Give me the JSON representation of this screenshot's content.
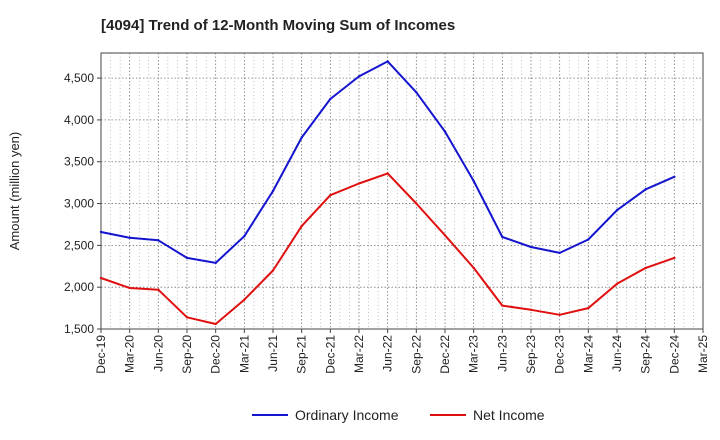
{
  "chart_data": {
    "type": "line",
    "title": "[4094]  Trend of 12-Month Moving Sum of Incomes",
    "xlabel": "",
    "ylabel": "Amount (million yen)",
    "ylim": [
      1500,
      4800
    ],
    "yticks": [
      1500,
      2000,
      2500,
      3000,
      3500,
      4000,
      4500
    ],
    "ytick_labels": [
      "1,500",
      "2,000",
      "2,500",
      "3,000",
      "3,500",
      "4,000",
      "4,500"
    ],
    "categories": [
      "Dec-19",
      "Mar-20",
      "Jun-20",
      "Sep-20",
      "Dec-20",
      "Mar-21",
      "Jun-21",
      "Sep-21",
      "Dec-21",
      "Mar-22",
      "Jun-22",
      "Sep-22",
      "Dec-22",
      "Mar-23",
      "Jun-23",
      "Sep-23",
      "Dec-23",
      "Mar-24",
      "Jun-24",
      "Sep-24",
      "Dec-24",
      "Mar-25"
    ],
    "grid": true,
    "legend_position": "bottom",
    "series": [
      {
        "name": "Ordinary Income",
        "color": "#1515d0",
        "values": [
          2660,
          2590,
          2560,
          2350,
          2290,
          2610,
          3150,
          3790,
          4250,
          4520,
          4700,
          4330,
          3860,
          3270,
          2600,
          2480,
          2410,
          2570,
          2920,
          3170,
          3320,
          null
        ]
      },
      {
        "name": "Net Income",
        "color": "#e01010",
        "values": [
          2110,
          1990,
          1970,
          1640,
          1560,
          1850,
          2200,
          2730,
          3100,
          3240,
          3360,
          3000,
          2620,
          2230,
          1780,
          1730,
          1670,
          1750,
          2040,
          2230,
          2350,
          null
        ]
      }
    ]
  }
}
